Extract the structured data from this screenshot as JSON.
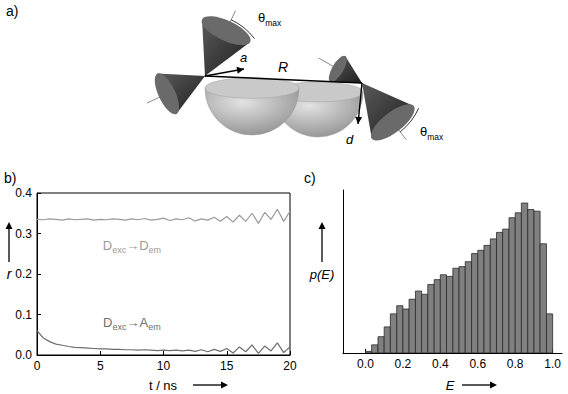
{
  "diagram": {
    "panel": "a)",
    "distance": "R",
    "acceptor_dipole": "a⃗",
    "donor_dipole": "d⃗",
    "cone_angle_labels": [
      "θmax",
      "θmax"
    ]
  },
  "chart_data": [
    {
      "panel": "b)",
      "type": "line",
      "xlabel": "t / ns",
      "ylabel": "r",
      "x": [
        0,
        0.5,
        1,
        1.5,
        2,
        2.5,
        3,
        3.5,
        4,
        4.5,
        5,
        5.5,
        6,
        6.5,
        7,
        7.5,
        8,
        8.5,
        9,
        9.5,
        10,
        10.5,
        11,
        11.5,
        12,
        12.5,
        13,
        13.5,
        14,
        14.5,
        15,
        15.5,
        16,
        16.5,
        17,
        17.5,
        18,
        18.5,
        19,
        19.5,
        20
      ],
      "series": [
        {
          "name": "Dexc→Dem",
          "color": "#9a9a9a",
          "values": [
            0.335,
            0.334,
            0.336,
            0.335,
            0.333,
            0.336,
            0.334,
            0.335,
            0.336,
            0.333,
            0.335,
            0.334,
            0.336,
            0.335,
            0.333,
            0.336,
            0.334,
            0.337,
            0.333,
            0.335,
            0.338,
            0.332,
            0.336,
            0.334,
            0.339,
            0.331,
            0.336,
            0.333,
            0.34,
            0.33,
            0.342,
            0.328,
            0.345,
            0.33,
            0.35,
            0.325,
            0.352,
            0.335,
            0.36,
            0.33,
            0.355
          ]
        },
        {
          "name": "Dexc→Aem",
          "color": "#6e6e6e",
          "values": [
            0.06,
            0.042,
            0.033,
            0.027,
            0.024,
            0.021,
            0.019,
            0.018,
            0.017,
            0.016,
            0.015,
            0.015,
            0.014,
            0.014,
            0.013,
            0.013,
            0.012,
            0.013,
            0.012,
            0.011,
            0.012,
            0.011,
            0.012,
            0.01,
            0.012,
            0.009,
            0.013,
            0.008,
            0.014,
            0.009,
            0.016,
            0.005,
            0.02,
            0.008,
            0.025,
            0.004,
            0.022,
            0.01,
            0.03,
            0.006,
            0.02
          ]
        }
      ],
      "xlim": [
        0,
        20
      ],
      "xticks": [
        0,
        5,
        10,
        15,
        20
      ],
      "ylim": [
        0,
        0.4
      ],
      "yticks": [
        {
          "value": 0,
          "label": "0.0"
        },
        {
          "value": 0.1,
          "label": "0.1"
        },
        {
          "value": 0.2,
          "label": "0.2"
        },
        {
          "value": 0.3,
          "label": "0.3"
        },
        {
          "value": 0.4,
          "label": "0.4"
        }
      ],
      "grid": false
    },
    {
      "panel": "c)",
      "type": "histogram",
      "xlabel": "E",
      "ylabel": "p(E)",
      "bins": [
        0,
        0.033,
        0.067,
        0.1,
        0.133,
        0.167,
        0.2,
        0.233,
        0.267,
        0.3,
        0.333,
        0.367,
        0.4,
        0.433,
        0.467,
        0.5,
        0.533,
        0.567,
        0.6,
        0.633,
        0.667,
        0.7,
        0.733,
        0.767,
        0.8,
        0.833,
        0.867,
        0.9,
        0.933,
        0.967,
        1.0
      ],
      "counts": [
        1,
        5,
        10,
        16,
        24,
        29,
        27,
        33,
        38,
        36,
        42,
        45,
        48,
        47,
        52,
        53,
        56,
        61,
        63,
        66,
        70,
        74,
        76,
        83,
        86,
        92,
        88,
        87,
        67,
        24
      ],
      "color": "#808080",
      "xlim": [
        -0.12,
        1.05
      ],
      "xticks": [
        {
          "value": 0,
          "label": "0.0"
        },
        {
          "value": 0.2,
          "label": "0.2"
        },
        {
          "value": 0.4,
          "label": "0.4"
        },
        {
          "value": 0.6,
          "label": "0.6"
        },
        {
          "value": 0.8,
          "label": "0.8"
        },
        {
          "value": 1.0,
          "label": "1.0"
        }
      ],
      "ylim": [
        0,
        100
      ],
      "tick_labels": "x",
      "grid": false
    }
  ]
}
